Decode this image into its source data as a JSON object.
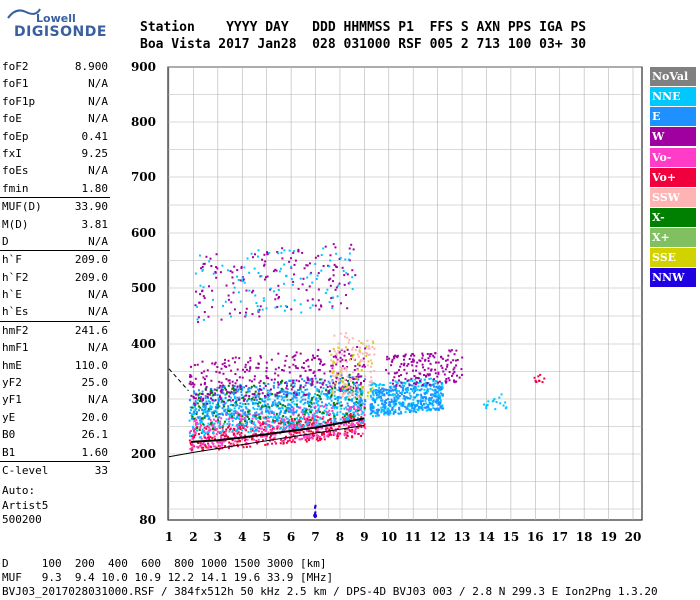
{
  "logo": {
    "company": "Lowell",
    "brand": "DIGISONDE",
    "color": "#3a5fa0"
  },
  "header": {
    "line1": "Station    YYYY DAY   DDD HHMMSS P1  FFS S AXN PPS IGA PS",
    "line2": "Boa Vista 2017 Jan28  028 031000 RSF 005 2 713 100 03+ 30"
  },
  "params": {
    "groups": [
      [
        {
          "label": "foF2",
          "value": "8.900"
        },
        {
          "label": "foF1",
          "value": "N/A"
        },
        {
          "label": "foF1p",
          "value": "N/A"
        },
        {
          "label": "foE",
          "value": "N/A"
        },
        {
          "label": "foEp",
          "value": "0.41"
        },
        {
          "label": "fxI",
          "value": "9.25"
        },
        {
          "label": "foEs",
          "value": "N/A"
        },
        {
          "label": "fmin",
          "value": "1.80"
        }
      ],
      [
        {
          "label": "MUF(D)",
          "value": "33.90"
        },
        {
          "label": "M(D)",
          "value": "3.81"
        },
        {
          "label": "D",
          "value": "N/A"
        }
      ],
      [
        {
          "label": "h`F",
          "value": "209.0"
        },
        {
          "label": "h`F2",
          "value": "209.0"
        },
        {
          "label": "h`E",
          "value": "N/A"
        },
        {
          "label": "h`Es",
          "value": "N/A"
        }
      ],
      [
        {
          "label": "hmF2",
          "value": "241.6"
        },
        {
          "label": "hmF1",
          "value": "N/A"
        },
        {
          "label": "hmE",
          "value": "110.0"
        },
        {
          "label": "yF2",
          "value": "25.0"
        },
        {
          "label": "yF1",
          "value": "N/A"
        },
        {
          "label": "yE",
          "value": "20.0"
        },
        {
          "label": "B0",
          "value": "26.1"
        },
        {
          "label": "B1",
          "value": "1.60"
        }
      ],
      [
        {
          "label": "C-level",
          "value": "33"
        }
      ]
    ],
    "auto": [
      "Auto:",
      "Artist5",
      "500200"
    ]
  },
  "legend": [
    {
      "label": "NoVal",
      "color": "#808080"
    },
    {
      "label": "NNE",
      "color": "#00c8ff"
    },
    {
      "label": "E",
      "color": "#1e90ff"
    },
    {
      "label": "W",
      "color": "#a000a0"
    },
    {
      "label": "Vo-",
      "color": "#ff3cc8"
    },
    {
      "label": "Vo+",
      "color": "#f0003c"
    },
    {
      "label": "SSW",
      "color": "#ffb4b4"
    },
    {
      "label": "X-",
      "color": "#008000"
    },
    {
      "label": "X+",
      "color": "#80c060"
    },
    {
      "label": "SSE",
      "color": "#d2d200"
    },
    {
      "label": "NNW",
      "color": "#2000e0"
    }
  ],
  "chart_data": {
    "type": "scatter",
    "xlim": [
      1,
      20
    ],
    "ylim": [
      80,
      900
    ],
    "x_ticks": [
      "1",
      "2",
      "3",
      "4",
      "5",
      "6",
      "7",
      "8",
      "9",
      "10",
      "11",
      "12",
      "13",
      "14",
      "15",
      "16",
      "17",
      "18",
      "19",
      "20"
    ],
    "y_ticks": [
      "80",
      "200",
      "300",
      "400",
      "500",
      "600",
      "700",
      "800",
      "900"
    ],
    "y_tick_values": [
      80,
      200,
      300,
      400,
      500,
      600,
      700,
      800,
      900
    ],
    "grid": true,
    "clusters": [
      {
        "x": [
          1.8,
          9.0
        ],
        "y": [
          205,
          250
        ],
        "color": "#f0003c",
        "n": 420
      },
      {
        "x": [
          1.8,
          9.0
        ],
        "y": [
          210,
          270
        ],
        "color": "#ff3cc8",
        "n": 420
      },
      {
        "x": [
          1.8,
          9.0
        ],
        "y": [
          230,
          300
        ],
        "color": "#00c8ff",
        "n": 520
      },
      {
        "x": [
          1.8,
          9.0
        ],
        "y": [
          260,
          320
        ],
        "color": "#1e90ff",
        "n": 380
      },
      {
        "x": [
          1.8,
          9.0
        ],
        "y": [
          240,
          320
        ],
        "color": "#008000",
        "n": 180
      },
      {
        "x": [
          1.8,
          9.0
        ],
        "y": [
          290,
          370
        ],
        "color": "#a000a0",
        "n": 320
      },
      {
        "x": [
          2.0,
          8.6
        ],
        "y": [
          440,
          560
        ],
        "color": "#a000a0",
        "n": 160
      },
      {
        "x": [
          2.0,
          8.6
        ],
        "y": [
          440,
          560
        ],
        "color": "#00c8ff",
        "n": 100
      },
      {
        "x": [
          9.2,
          12.2
        ],
        "y": [
          270,
          330
        ],
        "color": "#00c8ff",
        "n": 320
      },
      {
        "x": [
          9.2,
          12.2
        ],
        "y": [
          270,
          320
        ],
        "color": "#1e90ff",
        "n": 240
      },
      {
        "x": [
          9.8,
          13.0
        ],
        "y": [
          320,
          380
        ],
        "color": "#a000a0",
        "n": 160
      },
      {
        "x": [
          7.6,
          9.4
        ],
        "y": [
          300,
          420
        ],
        "color": "#ffb4b4",
        "n": 120
      },
      {
        "x": [
          7.6,
          9.4
        ],
        "y": [
          300,
          400
        ],
        "color": "#d2d200",
        "n": 40
      },
      {
        "x": [
          13.8,
          14.8
        ],
        "y": [
          280,
          310
        ],
        "color": "#00c8ff",
        "n": 18
      },
      {
        "x": [
          15.9,
          16.5
        ],
        "y": [
          330,
          345
        ],
        "color": "#f0003c",
        "n": 10
      },
      {
        "x": [
          6.9,
          7.0
        ],
        "y": [
          85,
          110
        ],
        "color": "#2000e0",
        "n": 10
      }
    ],
    "trace": {
      "x": [
        1.9,
        3,
        4,
        5,
        6,
        7,
        8,
        9
      ],
      "y": [
        222,
        225,
        230,
        236,
        242,
        248,
        256,
        265
      ],
      "color": "#000000"
    },
    "lower_curve": {
      "x": [
        1,
        2,
        3,
        4,
        5,
        6,
        7,
        8,
        9
      ],
      "y": [
        195,
        203,
        210,
        217,
        224,
        231,
        238,
        245,
        252
      ],
      "color": "#000000"
    },
    "dashed_curve": {
      "x": [
        1,
        1.4,
        1.8
      ],
      "y": [
        355,
        335,
        315
      ],
      "color": "#000000"
    }
  },
  "footer": {
    "line1": "D     100  200  400  600  800 1000 1500 3000 [km]",
    "line2": "MUF   9.3  9.4 10.0 10.9 12.2 14.1 19.6 33.9 [MHz]",
    "line3": "BVJ03_2017028031000.RSF / 384fx512h 50 kHz 2.5 km / DPS-4D BVJ03 003 / 2.8 N 299.3 E Ion2Png 1.3.20"
  }
}
